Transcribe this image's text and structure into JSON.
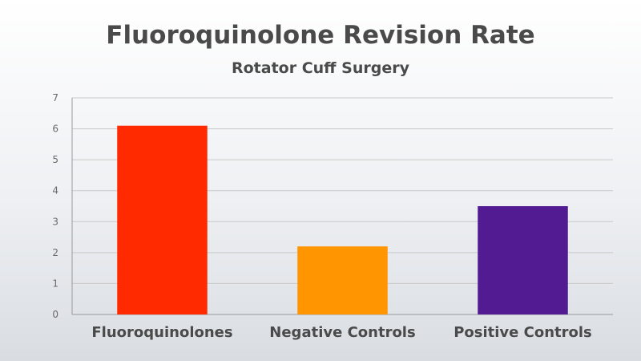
{
  "chart_data": {
    "type": "bar",
    "title": "Fluoroquinolone Revision Rate",
    "subtitle": "Rotator Cuff Surgery",
    "xlabel": "",
    "ylabel": "",
    "categories": [
      "Fluoroquinolones",
      "Negative Controls",
      "Positive Controls"
    ],
    "values": [
      6.1,
      2.2,
      3.5
    ],
    "colors": [
      "#ff2a00",
      "#ff9500",
      "#521b92"
    ],
    "ylim": [
      0,
      7
    ],
    "yticks": [
      0,
      1,
      2,
      3,
      4,
      5,
      6,
      7
    ],
    "grid": true,
    "legend": "none"
  }
}
